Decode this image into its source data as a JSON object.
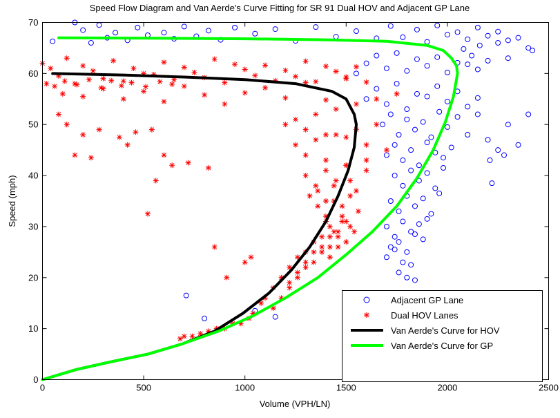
{
  "chart_data": {
    "type": "scatter",
    "title": "Speed Flow Diagram and Van Aerde's Curve Fitting for SR 91 Dual HOV and Adjacent GP Lane",
    "xlabel": "Volume (VPH/LN)",
    "ylabel": "Speed (mph)",
    "xlim": [
      0,
      2500
    ],
    "ylim": [
      0,
      70
    ],
    "xticks": [
      "0",
      "500",
      "1000",
      "1500",
      "2000",
      "2500"
    ],
    "yticks": [
      "0",
      "10",
      "20",
      "30",
      "40",
      "50",
      "60",
      "70"
    ],
    "grid": false,
    "legend_position": "bottom-right",
    "series": [
      {
        "name": "Adjacent GP Lane",
        "marker": "circle-open",
        "color": "#0000ff",
        "x": [
          50,
          160,
          200,
          240,
          280,
          320,
          360,
          420,
          470,
          520,
          600,
          650,
          700,
          760,
          820,
          880,
          950,
          1050,
          1150,
          1250,
          1350,
          1450,
          1550,
          1650,
          1720,
          1780,
          1850,
          1900,
          1950,
          2000,
          2050,
          2100,
          2150,
          2200,
          2250,
          2300,
          2350,
          2400,
          2420,
          2080,
          2120,
          2160,
          2200,
          2250,
          2300,
          1550,
          1600,
          1650,
          1700,
          1750,
          1800,
          1850,
          1900,
          1950,
          2000,
          2050,
          2100,
          2150,
          1600,
          1650,
          1700,
          1750,
          1800,
          1850,
          1900,
          1950,
          2000,
          2050,
          2100,
          2150,
          1680,
          1720,
          1760,
          1800,
          1840,
          1880,
          1920,
          1960,
          2000,
          2050,
          1700,
          1740,
          1780,
          1820,
          1860,
          1900,
          1940,
          1980,
          2020,
          1740,
          1780,
          1820,
          1860,
          1900,
          1940,
          1980,
          1720,
          1760,
          1800,
          1840,
          1880,
          1920,
          1960,
          1700,
          1740,
          1780,
          1820,
          1860,
          1900,
          1720,
          1760,
          1800,
          1840,
          1880,
          1700,
          1740,
          1780,
          1820,
          1760,
          1800,
          1840,
          1780,
          1820,
          2100,
          2150,
          2200,
          2250,
          2300,
          2350,
          2210,
          2280,
          2400,
          2220,
          710,
          800,
          1150,
          1050
        ],
        "y": [
          66.3,
          70,
          68.5,
          66,
          69.5,
          67,
          68,
          66.5,
          69,
          67.5,
          68,
          66.8,
          69.2,
          67.3,
          68.4,
          66.6,
          69,
          67.8,
          68.7,
          66.4,
          69.1,
          67.2,
          68.3,
          66.9,
          69.3,
          67.1,
          68.6,
          66.2,
          69.4,
          67.6,
          68.1,
          66.7,
          69.0,
          67.4,
          68.2,
          66.5,
          67,
          65,
          64.5,
          64.8,
          63.5,
          65.5,
          62.5,
          66,
          63,
          60,
          62,
          63.5,
          61,
          64,
          60.5,
          62.8,
          61.5,
          63.2,
          60.2,
          62.1,
          61.8,
          60.8,
          55,
          57,
          54,
          58,
          53,
          56,
          55.5,
          57.5,
          54.5,
          56.5,
          53.5,
          55.2,
          50,
          52,
          48,
          51,
          49,
          50.5,
          47.5,
          52.5,
          49.5,
          51.5,
          44,
          46,
          43,
          45,
          42,
          46.5,
          44.5,
          43.5,
          45.5,
          40,
          38,
          41,
          39,
          40.5,
          37.5,
          41.5,
          35,
          33,
          36,
          34,
          35.5,
          32.5,
          36.5,
          30,
          28,
          31,
          29,
          30.5,
          31.5,
          26,
          27,
          25,
          28.5,
          27.5,
          24,
          25.5,
          23,
          22.5,
          21,
          20,
          19.5,
          17,
          15,
          48,
          52,
          47,
          45,
          50,
          46,
          43,
          44,
          52,
          38.5,
          16.5,
          12,
          12.3,
          13.5
        ]
      },
      {
        "name": "Dual HOV Lanes",
        "marker": "asterisk",
        "color": "#ff0000",
        "x": [
          0,
          40,
          80,
          120,
          160,
          200,
          250,
          300,
          350,
          400,
          450,
          500,
          550,
          600,
          650,
          700,
          750,
          800,
          850,
          900,
          950,
          1000,
          1050,
          1100,
          1150,
          1200,
          1250,
          1300,
          1350,
          1400,
          1450,
          1500,
          1550,
          1600,
          100,
          200,
          300,
          400,
          500,
          600,
          700,
          800,
          900,
          1000,
          1100,
          1200,
          1300,
          1400,
          1500,
          20,
          60,
          110,
          170,
          230,
          290,
          340,
          390,
          440,
          510,
          580,
          640,
          1200,
          1250,
          1300,
          1350,
          1400,
          1450,
          1500,
          1550,
          1600,
          1650,
          1700,
          1750,
          1250,
          1300,
          1350,
          1400,
          1450,
          1500,
          1550,
          1600,
          1650,
          1300,
          1350,
          1400,
          1450,
          1500,
          1550,
          1600,
          1320,
          1360,
          1400,
          1440,
          1480,
          1520,
          1560,
          1360,
          1400,
          1440,
          1480,
          1520,
          1400,
          1440,
          1480,
          1520,
          1420,
          1460,
          1500,
          1540,
          1380,
          1420,
          1460,
          1500,
          1340,
          1380,
          1420,
          1460,
          1300,
          1340,
          1380,
          1420,
          1260,
          1300,
          1340,
          1220,
          1260,
          1300,
          1180,
          1220,
          1260,
          1140,
          1180,
          1220,
          1100,
          1140,
          1080,
          1040,
          1020,
          980,
          940,
          900,
          860,
          820,
          780,
          740,
          700,
          680,
          80,
          120,
          200,
          280,
          160,
          240,
          380,
          420,
          460,
          540,
          600,
          720,
          520,
          560,
          640,
          820,
          1000,
          1030,
          850,
          910
        ],
        "y": [
          62,
          61,
          59.5,
          63,
          58,
          61.5,
          60.5,
          59,
          62.5,
          58.5,
          61,
          60,
          59.8,
          62.2,
          58.8,
          61.2,
          60.2,
          59.2,
          62.8,
          58.2,
          61.8,
          60.8,
          59.6,
          61.6,
          58.6,
          60.6,
          59.4,
          62.4,
          58.4,
          61.4,
          60.4,
          59.3,
          61.3,
          58.3,
          56,
          55.5,
          57,
          55,
          56.5,
          54.5,
          57.5,
          55.8,
          54,
          56.2,
          57.2,
          55.2,
          58.2,
          54.8,
          59,
          58,
          57.5,
          58.5,
          57.8,
          58.8,
          57.2,
          58.6,
          57.6,
          58.2,
          57.4,
          58.4,
          57.9,
          50,
          51,
          49,
          52,
          48,
          53,
          47.5,
          54,
          46,
          55,
          45,
          56,
          46,
          44,
          47,
          43,
          48,
          42,
          49,
          41,
          50,
          40,
          38,
          41,
          39,
          42,
          37,
          43,
          36,
          37,
          35,
          38,
          34,
          39,
          33,
          34,
          32,
          35,
          31,
          36,
          31,
          29,
          32,
          30,
          30,
          28,
          31,
          29,
          28,
          26,
          29,
          27,
          27,
          25,
          28,
          26,
          25,
          23,
          26,
          24,
          24,
          22,
          25,
          22,
          20,
          23,
          20,
          18,
          21,
          18,
          16,
          19,
          16,
          14,
          15,
          13,
          12,
          11,
          11,
          10,
          10,
          9.5,
          9,
          8.5,
          8.5,
          8,
          52,
          50,
          48,
          49,
          44,
          43.5,
          47.5,
          46,
          48.5,
          49,
          44,
          42.5,
          32.5,
          39,
          42,
          41.5,
          23,
          24,
          26,
          20
        ]
      },
      {
        "name": "Van Aerde's Curve for HOV",
        "marker": "line",
        "color": "#000000",
        "x": [
          0,
          170,
          340,
          520,
          690,
          850,
          990,
          1120,
          1230,
          1320,
          1400,
          1460,
          1510,
          1540,
          1550,
          1540,
          1500,
          1430,
          1250,
          1000,
          700,
          400,
          50
        ],
        "y": [
          0,
          2,
          3.5,
          5,
          7,
          9.5,
          13,
          17,
          21.5,
          26,
          31,
          36,
          41,
          45.5,
          50,
          52,
          55,
          56.5,
          58,
          58.8,
          59.3,
          59.7,
          60
        ]
      },
      {
        "name": "Van Aerde's Curve for GP",
        "marker": "line",
        "color": "#00ff00",
        "x": [
          0,
          170,
          340,
          520,
          690,
          870,
          1040,
          1200,
          1360,
          1500,
          1630,
          1750,
          1850,
          1930,
          1990,
          2030,
          2050,
          2045,
          2020,
          1980,
          1900,
          1700,
          1400,
          1000,
          600,
          300,
          80
        ],
        "y": [
          0,
          2,
          3.5,
          5,
          7,
          9.5,
          12.5,
          16,
          20,
          24.5,
          29,
          34,
          39.5,
          45,
          50.5,
          55.5,
          60,
          61.5,
          63,
          64.5,
          65.5,
          66.3,
          66.6,
          66.8,
          66.9,
          66.95,
          67
        ]
      }
    ]
  }
}
